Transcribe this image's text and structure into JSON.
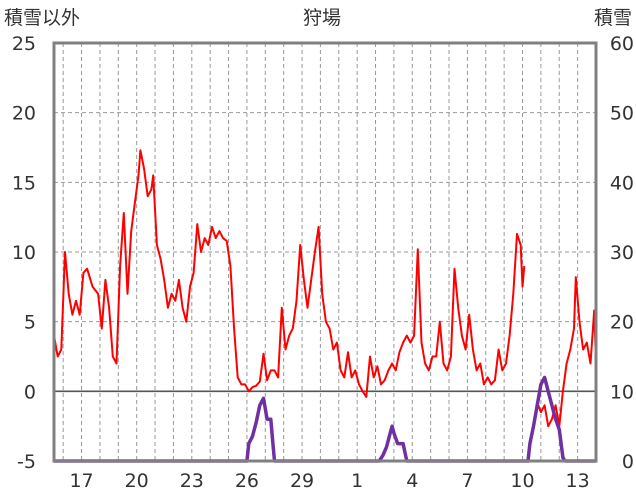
{
  "chart_data": {
    "type": "line",
    "title": "狩場",
    "left_axis_title": "積雪以外",
    "right_axis_title": "積雪",
    "left_axis": {
      "min": -5,
      "max": 25,
      "ticks": [
        "-5",
        "0",
        "5",
        "10",
        "15",
        "20",
        "25"
      ]
    },
    "right_axis": {
      "min": 0,
      "max": 60,
      "ticks": [
        "0",
        "10",
        "20",
        "30",
        "40",
        "50",
        "60"
      ]
    },
    "x_axis": {
      "min": 15.5,
      "max": 45,
      "tick_labels": [
        "17",
        "20",
        "23",
        "26",
        "29",
        "1",
        "4",
        "7",
        "10",
        "13"
      ],
      "tick_days": [
        17,
        20,
        23,
        26,
        29,
        32,
        35,
        38,
        41,
        44
      ]
    },
    "grid": {
      "horizontal": true,
      "vertical_daily": true
    },
    "series": [
      {
        "axis": "left",
        "color": "#ff0000",
        "segments": [
          [
            [
              15.5,
              4.0
            ],
            [
              15.7,
              2.5
            ],
            [
              15.9,
              3.0
            ],
            [
              16.1,
              10.0
            ],
            [
              16.3,
              7.0
            ],
            [
              16.5,
              5.5
            ],
            [
              16.7,
              6.5
            ],
            [
              16.9,
              5.5
            ],
            [
              17.1,
              8.5
            ],
            [
              17.3,
              8.8
            ],
            [
              17.6,
              7.5
            ],
            [
              17.9,
              7.0
            ],
            [
              18.1,
              4.5
            ],
            [
              18.3,
              8.0
            ],
            [
              18.5,
              6.0
            ],
            [
              18.7,
              2.5
            ],
            [
              18.9,
              2.0
            ],
            [
              19.1,
              9.0
            ],
            [
              19.3,
              12.8
            ],
            [
              19.5,
              7.0
            ],
            [
              19.7,
              11.5
            ],
            [
              19.9,
              13.5
            ],
            [
              20.1,
              15.5
            ],
            [
              20.2,
              17.3
            ],
            [
              20.4,
              16.0
            ],
            [
              20.6,
              14.0
            ],
            [
              20.8,
              14.5
            ],
            [
              20.9,
              15.5
            ],
            [
              21.1,
              10.5
            ],
            [
              21.3,
              9.5
            ],
            [
              21.5,
              8.0
            ],
            [
              21.7,
              6.0
            ],
            [
              21.9,
              7.0
            ],
            [
              22.1,
              6.5
            ],
            [
              22.3,
              8.0
            ],
            [
              22.5,
              6.0
            ],
            [
              22.7,
              5.0
            ],
            [
              22.9,
              7.5
            ],
            [
              23.1,
              8.5
            ],
            [
              23.3,
              12.0
            ],
            [
              23.5,
              10.0
            ],
            [
              23.7,
              11.0
            ],
            [
              23.9,
              10.5
            ],
            [
              24.1,
              11.8
            ],
            [
              24.3,
              11.0
            ],
            [
              24.5,
              11.5
            ],
            [
              24.7,
              11.0
            ],
            [
              24.9,
              10.8
            ],
            [
              25.1,
              9.0
            ],
            [
              25.3,
              4.5
            ],
            [
              25.5,
              1.0
            ],
            [
              25.7,
              0.5
            ],
            [
              25.9,
              0.5
            ],
            [
              26.1,
              0.0
            ],
            [
              26.3,
              0.3
            ],
            [
              26.5,
              0.4
            ],
            [
              26.7,
              0.7
            ],
            [
              26.9,
              2.7
            ],
            [
              27.1,
              0.8
            ],
            [
              27.3,
              1.5
            ],
            [
              27.5,
              1.5
            ],
            [
              27.7,
              1.0
            ],
            [
              27.9,
              6.0
            ],
            [
              28.1,
              3.0
            ],
            [
              28.3,
              4.0
            ],
            [
              28.5,
              4.5
            ],
            [
              28.7,
              6.5
            ],
            [
              28.9,
              10.5
            ],
            [
              29.1,
              8.0
            ],
            [
              29.3,
              6.0
            ],
            [
              29.5,
              8.0
            ],
            [
              29.7,
              10.0
            ],
            [
              29.9,
              11.8
            ],
            [
              30.1,
              7.0
            ],
            [
              30.3,
              5.0
            ],
            [
              30.5,
              4.5
            ],
            [
              30.7,
              3.0
            ],
            [
              30.9,
              3.5
            ],
            [
              31.1,
              1.5
            ],
            [
              31.3,
              1.0
            ],
            [
              31.5,
              2.8
            ],
            [
              31.7,
              1.0
            ],
            [
              31.9,
              1.5
            ],
            [
              32.1,
              0.5
            ],
            [
              32.3,
              0.0
            ],
            [
              32.5,
              -0.4
            ],
            [
              32.7,
              2.5
            ],
            [
              32.9,
              1.0
            ],
            [
              33.1,
              1.8
            ],
            [
              33.3,
              0.5
            ],
            [
              33.5,
              0.8
            ],
            [
              33.7,
              1.5
            ],
            [
              33.9,
              2.0
            ],
            [
              34.1,
              1.5
            ],
            [
              34.3,
              2.8
            ],
            [
              34.5,
              3.5
            ],
            [
              34.7,
              4.0
            ],
            [
              34.9,
              3.5
            ],
            [
              35.1,
              4.0
            ],
            [
              35.3,
              10.2
            ],
            [
              35.5,
              3.5
            ],
            [
              35.7,
              2.0
            ],
            [
              35.9,
              1.5
            ],
            [
              36.1,
              2.5
            ],
            [
              36.3,
              2.5
            ],
            [
              36.5,
              5.0
            ],
            [
              36.7,
              2.0
            ],
            [
              36.9,
              1.5
            ],
            [
              37.1,
              2.5
            ],
            [
              37.3,
              8.8
            ],
            [
              37.5,
              6.0
            ],
            [
              37.7,
              4.0
            ],
            [
              37.9,
              3.0
            ],
            [
              38.1,
              5.5
            ],
            [
              38.3,
              3.0
            ],
            [
              38.5,
              1.5
            ],
            [
              38.7,
              2.0
            ],
            [
              38.9,
              0.5
            ],
            [
              39.1,
              1.0
            ],
            [
              39.3,
              0.5
            ],
            [
              39.5,
              0.8
            ],
            [
              39.7,
              3.0
            ],
            [
              39.9,
              1.5
            ],
            [
              40.1,
              2.0
            ],
            [
              40.3,
              4.0
            ],
            [
              40.5,
              7.0
            ],
            [
              40.7,
              11.3
            ],
            [
              40.9,
              10.5
            ],
            [
              41.0,
              7.5
            ],
            [
              41.1,
              9.0
            ]
          ],
          [
            [
              41.8,
              -0.8
            ],
            [
              42.0,
              -1.5
            ],
            [
              42.2,
              -1.0
            ],
            [
              42.4,
              -2.5
            ],
            [
              42.6,
              -2.0
            ],
            [
              42.8,
              -1.0
            ],
            [
              43.0,
              -2.5
            ],
            [
              43.2,
              0.0
            ],
            [
              43.4,
              2.0
            ],
            [
              43.6,
              3.0
            ],
            [
              43.8,
              4.5
            ],
            [
              43.9,
              8.2
            ],
            [
              44.1,
              5.0
            ],
            [
              44.3,
              3.0
            ],
            [
              44.5,
              3.5
            ],
            [
              44.7,
              2.0
            ],
            [
              44.9,
              5.8
            ],
            [
              45.0,
              2.0
            ]
          ]
        ]
      },
      {
        "axis": "right",
        "color": "#7030a0",
        "segments": [
          [
            [
              15.5,
              0
            ],
            [
              26.0,
              0
            ],
            [
              26.1,
              2.5
            ],
            [
              26.3,
              3.5
            ],
            [
              26.5,
              5.5
            ],
            [
              26.7,
              8.0
            ],
            [
              26.9,
              9.0
            ],
            [
              27.1,
              6.0
            ],
            [
              27.3,
              6.0
            ],
            [
              27.4,
              3.0
            ],
            [
              27.5,
              0
            ],
            [
              33.2,
              0
            ],
            [
              33.4,
              0.8
            ],
            [
              33.6,
              2.0
            ],
            [
              33.8,
              4.0
            ],
            [
              33.9,
              5.0
            ],
            [
              34.0,
              4.0
            ],
            [
              34.2,
              2.5
            ],
            [
              34.5,
              2.5
            ],
            [
              34.7,
              0
            ],
            [
              41.3,
              0
            ],
            [
              41.4,
              2.5
            ],
            [
              41.6,
              5.0
            ],
            [
              41.8,
              8.0
            ],
            [
              42.0,
              11.0
            ],
            [
              42.2,
              12.0
            ],
            [
              42.4,
              10.0
            ],
            [
              42.6,
              8.0
            ],
            [
              42.8,
              6.0
            ],
            [
              43.0,
              4.5
            ],
            [
              43.2,
              0.5
            ],
            [
              43.3,
              0
            ],
            [
              45.0,
              0
            ]
          ]
        ]
      }
    ]
  }
}
